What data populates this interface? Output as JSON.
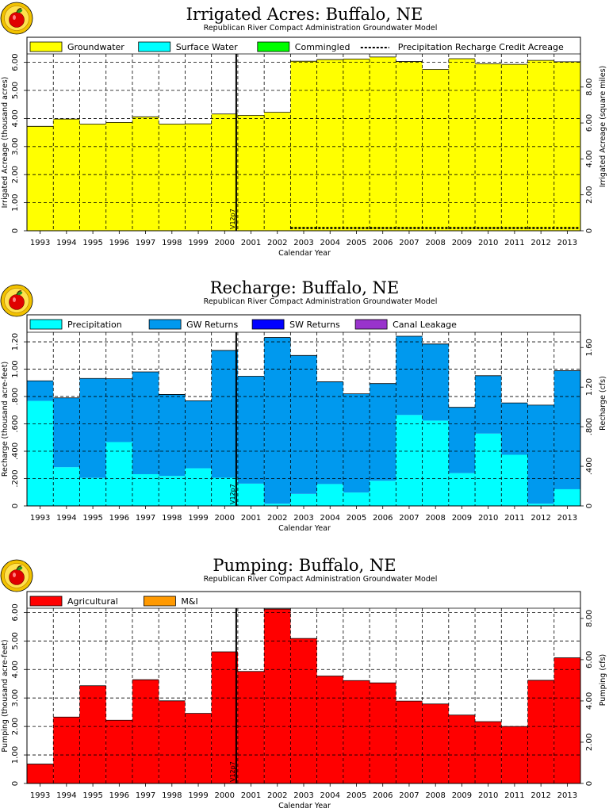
{
  "chart_data": [
    {
      "type": "bar",
      "stacked": true,
      "title": "Irrigated Acres: Buffalo, NE",
      "subtitle": "Republican River Compact Administration Groundwater Model",
      "xlabel": "Calendar Year",
      "ylabel": "Irrigated Acreage (thousand acres)",
      "y2label": "Irrigated Acreage (square miles)",
      "ylim": [
        0,
        6.3
      ],
      "y_ticks": [
        "0",
        "1.00",
        "2.00",
        "3.00",
        "4.00",
        "5.00",
        "6.00"
      ],
      "y2_ticks": [
        "0",
        "2.00",
        "4.00",
        "6.00",
        "8.00"
      ],
      "y2_factor": 1.5625,
      "grid": true,
      "legend_position": "top",
      "categories": [
        "1993",
        "1994",
        "1995",
        "1996",
        "1997",
        "1998",
        "1999",
        "2000",
        "2001",
        "2002",
        "2003",
        "2004",
        "2005",
        "2006",
        "2007",
        "2008",
        "2009",
        "2010",
        "2011",
        "2012",
        "2013"
      ],
      "x_tick_labels": [
        "1993",
        "1994",
        "1995",
        "1996",
        "1997",
        "1998",
        "1999",
        "2000",
        "2001",
        "2002",
        "2003",
        "2004",
        "2005",
        "2006",
        "2007",
        "2008",
        "2009",
        "2010",
        "2011",
        "2012",
        "2013"
      ],
      "series": [
        {
          "name": "Groundwater",
          "color": "#ffff00",
          "values": [
            3.72,
            3.98,
            3.8,
            3.86,
            4.06,
            3.8,
            3.81,
            4.16,
            4.11,
            4.22,
            6.04,
            6.1,
            6.12,
            6.19,
            6.03,
            5.75,
            6.13,
            5.95,
            5.93,
            6.07,
            6.02
          ]
        },
        {
          "name": "Surface Water",
          "color": "#00ffff",
          "values": [
            0,
            0,
            0,
            0,
            0,
            0,
            0,
            0,
            0,
            0,
            0,
            0,
            0,
            0,
            0,
            0,
            0,
            0,
            0,
            0,
            0
          ]
        },
        {
          "name": "Commingled",
          "color": "#00ff00",
          "values": [
            0,
            0,
            0,
            0,
            0,
            0,
            0,
            0,
            0,
            0,
            0,
            0,
            0,
            0,
            0,
            0,
            0,
            0,
            0,
            0,
            0
          ]
        }
      ],
      "dashed_line": {
        "name": "Precipitation Recharge Credit Acreage",
        "start_index": 10,
        "value": 0.1
      },
      "annotation": {
        "label": "V12p7",
        "index": 8
      }
    },
    {
      "type": "bar",
      "stacked": true,
      "title": "Recharge: Buffalo, NE",
      "subtitle": "Republican River Compact Administration Groundwater Model",
      "xlabel": "Calendar Year",
      "ylabel": "Recharge (thousand acre-feet)",
      "y2label": "Recharge (cfs)",
      "ylim": [
        0,
        1.27
      ],
      "y_ticks": [
        "0",
        ".200",
        ".400",
        ".600",
        ".800",
        "1.00",
        "1.20"
      ],
      "y2_ticks": [
        "0",
        ".400",
        ".800",
        "1.20",
        "1.60"
      ],
      "y2_factor": 1.3812,
      "grid": true,
      "legend_position": "top",
      "categories": [
        "1993",
        "1994",
        "1995",
        "1996",
        "1997",
        "1998",
        "1999",
        "2000",
        "2001",
        "2002",
        "2003",
        "2004",
        "2005",
        "2006",
        "2007",
        "2008",
        "2009",
        "2010",
        "2011",
        "2012",
        "2013"
      ],
      "x_tick_labels": [
        "1993",
        "1994",
        "1995",
        "1996",
        "1997",
        "1998",
        "1999",
        "2000",
        "2001",
        "2002",
        "2003",
        "2004",
        "2005",
        "2006",
        "2007",
        "2008",
        "2009",
        "2010",
        "2011",
        "2012",
        "2013"
      ],
      "series": [
        {
          "name": "Precipitation",
          "color": "#00ffff",
          "values": [
            0.768,
            0.283,
            0.205,
            0.467,
            0.232,
            0.219,
            0.275,
            0.206,
            0.163,
            0.016,
            0.088,
            0.16,
            0.098,
            0.184,
            0.665,
            0.624,
            0.24,
            0.529,
            0.374,
            0.016,
            0.122
          ]
        },
        {
          "name": "GW Returns",
          "color": "#0099ee",
          "values": [
            0.147,
            0.507,
            0.727,
            0.463,
            0.748,
            0.596,
            0.494,
            0.931,
            0.785,
            1.216,
            1.012,
            0.748,
            0.722,
            0.711,
            0.576,
            0.56,
            0.481,
            0.423,
            0.379,
            0.721,
            0.867
          ]
        },
        {
          "name": "SW Returns",
          "color": "#0000ff",
          "values": [
            0,
            0,
            0,
            0,
            0,
            0,
            0,
            0,
            0,
            0,
            0,
            0,
            0,
            0,
            0,
            0,
            0,
            0,
            0,
            0,
            0
          ]
        },
        {
          "name": "Canal Leakage",
          "color": "#9933cc",
          "values": [
            0,
            0,
            0,
            0,
            0,
            0,
            0,
            0,
            0,
            0,
            0,
            0,
            0,
            0,
            0,
            0,
            0,
            0,
            0,
            0,
            0
          ]
        }
      ],
      "annotation": {
        "label": "V12p7",
        "index": 8
      }
    },
    {
      "type": "bar",
      "stacked": true,
      "title": "Pumping: Buffalo, NE",
      "subtitle": "Republican River Compact Administration Groundwater Model",
      "xlabel": "Calendar Year",
      "ylabel": "Pumping (thousand acre-feet)",
      "y2label": "Pumping (cfs)",
      "ylim": [
        0,
        6.15
      ],
      "y_ticks": [
        "0",
        "1.00",
        "2.00",
        "3.00",
        "4.00",
        "5.00",
        "6.00"
      ],
      "y2_ticks": [
        "0",
        "2.00",
        "4.00",
        "6.00",
        "8.00"
      ],
      "y2_factor": 1.3812,
      "grid": true,
      "legend_position": "top",
      "categories": [
        "1993",
        "1994",
        "1995",
        "1996",
        "1997",
        "1998",
        "1999",
        "2000",
        "2001",
        "2002",
        "2003",
        "2004",
        "2005",
        "2006",
        "2007",
        "2008",
        "2009",
        "2010",
        "2011",
        "2012",
        "2013"
      ],
      "x_tick_labels": [
        "1993",
        "1994",
        "1995",
        "1996",
        "1997",
        "1998",
        "1999",
        "2000",
        "2001",
        "2002",
        "2003",
        "2004",
        "2005",
        "2006",
        "2007",
        "2008",
        "2009",
        "2010",
        "2011",
        "2012",
        "2013"
      ],
      "series": [
        {
          "name": "Agricultural",
          "color": "#ff0000",
          "values": [
            0.68,
            2.33,
            3.43,
            2.22,
            3.64,
            2.9,
            2.46,
            4.62,
            3.93,
            6.12,
            5.09,
            3.77,
            3.61,
            3.53,
            2.89,
            2.79,
            2.4,
            2.17,
            2.0,
            3.62,
            4.41
          ]
        },
        {
          "name": "M&I",
          "color": "#ff9900",
          "values": [
            0,
            0,
            0,
            0,
            0,
            0,
            0,
            0,
            0,
            0,
            0,
            0,
            0,
            0,
            0,
            0,
            0,
            0,
            0,
            0,
            0
          ]
        }
      ],
      "annotation": {
        "label": "V12p7",
        "index": 8
      }
    }
  ]
}
